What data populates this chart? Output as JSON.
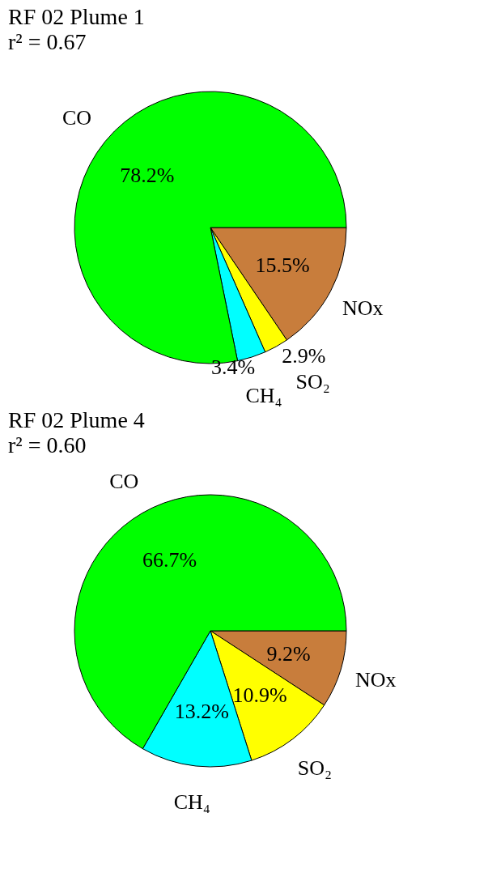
{
  "chart_data": [
    {
      "type": "pie",
      "title": "RF 02 Plume 1",
      "subtitle": "r² = 0.67",
      "categories": [
        "NOx",
        "SO₂",
        "CH₄",
        "CO"
      ],
      "values": [
        15.5,
        2.9,
        3.4,
        78.2
      ],
      "colors": [
        "#c87d3c",
        "#ffff00",
        "#00ffff",
        "#00ff00"
      ],
      "value_labels": [
        "15.5%",
        "2.9%",
        "3.4%",
        "78.2%"
      ],
      "legend": false
    },
    {
      "type": "pie",
      "title": "RF 02 Plume 4",
      "subtitle": "r² = 0.60",
      "categories": [
        "NOx",
        "SO₂",
        "CH₄",
        "CO"
      ],
      "values": [
        9.2,
        10.9,
        13.2,
        66.7
      ],
      "colors": [
        "#c87d3c",
        "#ffff00",
        "#00ffff",
        "#00ff00"
      ],
      "value_labels": [
        "9.2%",
        "10.9%",
        "13.2%",
        "66.7%"
      ],
      "legend": false
    }
  ]
}
